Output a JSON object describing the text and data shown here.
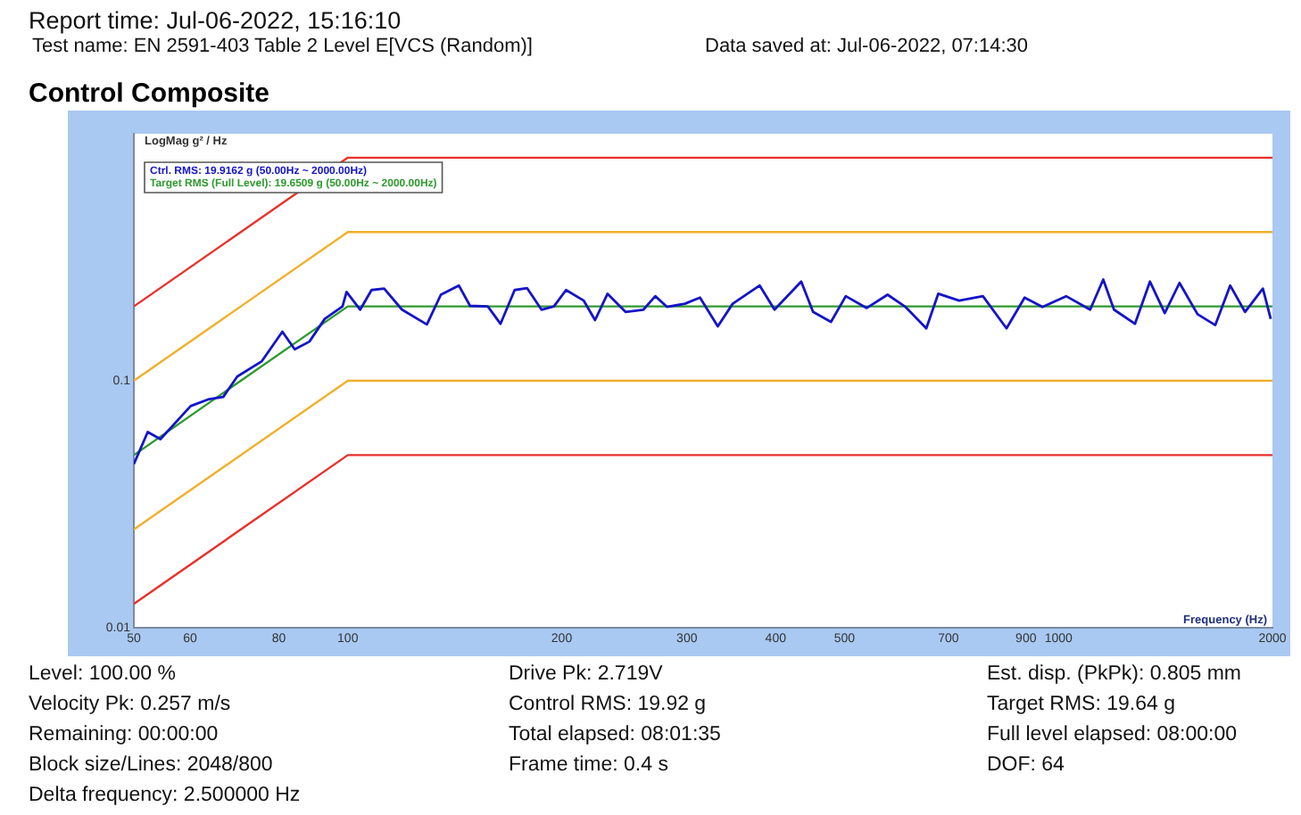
{
  "chart_data": {
    "type": "line",
    "title": "Control Composite",
    "xlabel": "Frequency (Hz)",
    "ylabel": "LogMag g² / Hz",
    "log": "xy",
    "grid": false,
    "legend": "top left",
    "marker": "none",
    "line_style": "solid",
    "xlim": [
      50,
      2000
    ],
    "xticks": [
      50,
      60,
      80,
      100,
      200,
      300,
      400,
      500,
      700,
      900,
      1000,
      2000
    ],
    "ylim": [
      0.01,
      1
    ],
    "yticks": [
      0.01,
      0.1
    ],
    "series": [
      {
        "name": "Ctrl. RMS: 19.9162 g (50.00Hz ~ 2000.00Hz)",
        "color": "#1414c8",
        "x": [
          50,
          52.3,
          54.5,
          60.1,
          63.6,
          66.8,
          69.9,
          75.7,
          80.9,
          84.2,
          88.3,
          92.8,
          98.3,
          99.6,
          104.1,
          108,
          112.5,
          119.2,
          129.2,
          135.2,
          143.3,
          148.6,
          157.4,
          164,
          171.7,
          178.8,
          187.3,
          195,
          202.8,
          214.8,
          222.8,
          232,
          245.9,
          260.6,
          270.8,
          281.4,
          298.1,
          313,
          331.6,
          348,
          379.8,
          398.5,
          434.5,
          451.5,
          478.5,
          502,
          537.3,
          574.8,
          609,
          651.6,
          677.3,
          724.8,
          782.8,
          845,
          896,
          949.5,
          1025,
          1108,
          1156,
          1197,
          1281,
          1345,
          1411,
          1480,
          1569,
          1662,
          1744,
          1830,
          1939,
          1989
        ],
        "values": [
          0.046,
          0.062,
          0.058,
          0.079,
          0.084,
          0.086,
          0.104,
          0.12,
          0.158,
          0.134,
          0.144,
          0.178,
          0.2,
          0.229,
          0.194,
          0.233,
          0.236,
          0.194,
          0.169,
          0.223,
          0.243,
          0.201,
          0.2,
          0.17,
          0.233,
          0.237,
          0.194,
          0.2,
          0.233,
          0.211,
          0.176,
          0.225,
          0.19,
          0.194,
          0.22,
          0.199,
          0.205,
          0.217,
          0.166,
          0.205,
          0.243,
          0.194,
          0.252,
          0.19,
          0.173,
          0.22,
          0.197,
          0.223,
          0.199,
          0.163,
          0.225,
          0.211,
          0.22,
          0.163,
          0.217,
          0.199,
          0.22,
          0.194,
          0.257,
          0.194,
          0.17,
          0.252,
          0.188,
          0.249,
          0.186,
          0.168,
          0.243,
          0.19,
          0.236,
          0.178
        ]
      },
      {
        "name": "Target RMS (Full Level): 19.6509 g (50.00Hz ~ 2000.00Hz)",
        "color": "#2e9a2e",
        "x": [
          50,
          100,
          2000
        ],
        "values": [
          0.05,
          0.2,
          0.2
        ]
      },
      {
        "color": "#f0b02a",
        "x": [
          50,
          100,
          2000
        ],
        "values": [
          0.1,
          0.4,
          0.4
        ]
      },
      {
        "color": "#f0b02a",
        "x": [
          50,
          100,
          2000
        ],
        "values": [
          0.025,
          0.1,
          0.1
        ]
      },
      {
        "color": "#e8302a",
        "x": [
          50,
          100,
          2000
        ],
        "values": [
          0.2,
          0.8,
          0.8
        ]
      },
      {
        "color": "#e8302a",
        "x": [
          50,
          100,
          2000
        ],
        "values": [
          0.0125,
          0.05,
          0.05
        ]
      }
    ],
    "annotations": [
      "Report time: Jul-06-2022, 15:16:10",
      "Test name: EN 2591-403 Table 2 Level E[VCS (Random)]",
      "Data saved at: Jul-06-2022, 07:14:30",
      "Level: 100.00 %",
      "Drive Pk: 2.719V",
      "Est. disp. (PkPk): 0.805 mm",
      "Velocity Pk: 0.257 m/s",
      "Control RMS: 19.92 g",
      "Target RMS: 19.64 g",
      "Remaining: 00:00:00",
      "Total elapsed: 08:01:35",
      "Full level elapsed: 08:00:00",
      "Block size/Lines: 2048/800",
      "Frame time: 0.4 s",
      "DOF: 64",
      "Delta frequency: 2.500000 Hz"
    ]
  }
}
